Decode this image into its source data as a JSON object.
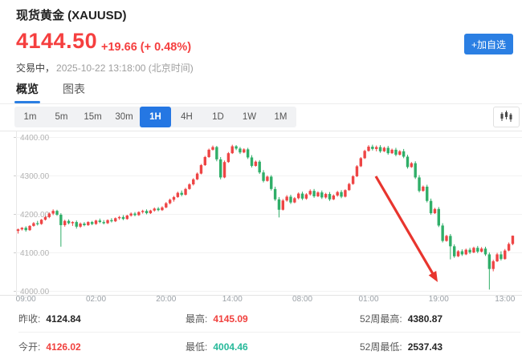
{
  "header": {
    "title": "现货黄金 (XAUUSD)",
    "price": "4144.50",
    "change": "+19.66 (+ 0.48%)",
    "trading_status": "交易中，",
    "timestamp": "2025-10-22 13:18:00 (北京时间)",
    "add_watchlist_label": "+加自选"
  },
  "tabs": [
    {
      "label": "概览",
      "active": true
    },
    {
      "label": "图表",
      "active": false
    }
  ],
  "toolbar": {
    "intervals": [
      "1m",
      "5m",
      "15m",
      "30m",
      "1H",
      "4H",
      "1D",
      "1W",
      "1M"
    ],
    "active": "1H"
  },
  "colors": {
    "accent_blue": "#2b7fe3",
    "up_red": "#ee4545",
    "down_green": "#2fae68",
    "price_red": "#f53f3f",
    "value_green": "#26b99a",
    "arrow_red": "#e8352e"
  },
  "stats": [
    {
      "label": "昨收:",
      "value": "4124.84",
      "color": "dark"
    },
    {
      "label": "最高:",
      "value": "4145.09",
      "color": "red"
    },
    {
      "label": "52周最高:",
      "value": "4380.87",
      "color": "dark"
    },
    {
      "label": "今开:",
      "value": "4126.02",
      "color": "red"
    },
    {
      "label": "最低:",
      "value": "4004.46",
      "color": "green"
    },
    {
      "label": "52周最低:",
      "value": "2537.43",
      "color": "dark"
    }
  ],
  "chart_data": {
    "type": "candlestick",
    "interval": "1H",
    "title": "现货黄金 XAUUSD 1H",
    "ylim": [
      4000,
      4400
    ],
    "ylabels": [
      "4400.00",
      "4300.00",
      "4200.00",
      "4100.00",
      "4000.00"
    ],
    "grid_levels": [
      4400,
      4300,
      4200,
      4100,
      4000
    ],
    "xlabels": [
      "09:00",
      "02:00",
      "20:00",
      "14:00",
      "08:00",
      "01:00",
      "19:00",
      "13:00"
    ],
    "tick_indices": [
      2,
      20,
      38,
      55,
      73,
      90,
      108,
      125
    ],
    "up_color": "#ee4545",
    "down_color": "#2fae68",
    "annotation_arrow": {
      "x1": 468,
      "y1": 57,
      "x2": 545,
      "y2": 189
    },
    "candles": [
      [
        4157,
        4163,
        4150,
        4161
      ],
      [
        4161,
        4167,
        4158,
        4165
      ],
      [
        4165,
        4169,
        4155,
        4159
      ],
      [
        4159,
        4172,
        4157,
        4170
      ],
      [
        4170,
        4180,
        4168,
        4177
      ],
      [
        4177,
        4183,
        4171,
        4175
      ],
      [
        4175,
        4188,
        4173,
        4186
      ],
      [
        4186,
        4196,
        4184,
        4193
      ],
      [
        4193,
        4205,
        4190,
        4202
      ],
      [
        4202,
        4213,
        4198,
        4209
      ],
      [
        4209,
        4212,
        4196,
        4199
      ],
      [
        4199,
        4203,
        4116,
        4172
      ],
      [
        4172,
        4186,
        4168,
        4183
      ],
      [
        4183,
        4187,
        4174,
        4177
      ],
      [
        4177,
        4182,
        4170,
        4180
      ],
      [
        4180,
        4184,
        4163,
        4168
      ],
      [
        4168,
        4179,
        4165,
        4176
      ],
      [
        4176,
        4180,
        4169,
        4172
      ],
      [
        4172,
        4182,
        4170,
        4180
      ],
      [
        4180,
        4183,
        4172,
        4175
      ],
      [
        4175,
        4186,
        4173,
        4184
      ],
      [
        4184,
        4189,
        4177,
        4180
      ],
      [
        4180,
        4185,
        4174,
        4177
      ],
      [
        4177,
        4187,
        4175,
        4185
      ],
      [
        4185,
        4190,
        4179,
        4182
      ],
      [
        4182,
        4192,
        4180,
        4190
      ],
      [
        4190,
        4196,
        4186,
        4193
      ],
      [
        4193,
        4198,
        4185,
        4188
      ],
      [
        4188,
        4199,
        4186,
        4197
      ],
      [
        4197,
        4205,
        4194,
        4202
      ],
      [
        4202,
        4206,
        4195,
        4198
      ],
      [
        4198,
        4208,
        4196,
        4206
      ],
      [
        4206,
        4212,
        4202,
        4209
      ],
      [
        4209,
        4213,
        4200,
        4203
      ],
      [
        4203,
        4212,
        4201,
        4210
      ],
      [
        4210,
        4218,
        4207,
        4215
      ],
      [
        4215,
        4219,
        4208,
        4211
      ],
      [
        4211,
        4221,
        4209,
        4218
      ],
      [
        4218,
        4232,
        4216,
        4229
      ],
      [
        4229,
        4241,
        4226,
        4238
      ],
      [
        4238,
        4248,
        4233,
        4245
      ],
      [
        4245,
        4259,
        4243,
        4256
      ],
      [
        4256,
        4262,
        4247,
        4251
      ],
      [
        4251,
        4269,
        4249,
        4266
      ],
      [
        4266,
        4281,
        4264,
        4278
      ],
      [
        4278,
        4294,
        4275,
        4291
      ],
      [
        4291,
        4309,
        4289,
        4306
      ],
      [
        4306,
        4331,
        4304,
        4328
      ],
      [
        4328,
        4352,
        4326,
        4349
      ],
      [
        4349,
        4371,
        4347,
        4368
      ],
      [
        4368,
        4379,
        4366,
        4375
      ],
      [
        4375,
        4378,
        4338,
        4343
      ],
      [
        4343,
        4349,
        4291,
        4296
      ],
      [
        4296,
        4340,
        4294,
        4336
      ],
      [
        4336,
        4362,
        4334,
        4359
      ],
      [
        4359,
        4381,
        4357,
        4377
      ],
      [
        4377,
        4380,
        4367,
        4371
      ],
      [
        4371,
        4375,
        4357,
        4361
      ],
      [
        4361,
        4372,
        4359,
        4369
      ],
      [
        4369,
        4373,
        4344,
        4348
      ],
      [
        4348,
        4354,
        4322,
        4326
      ],
      [
        4326,
        4340,
        4324,
        4337
      ],
      [
        4337,
        4341,
        4305,
        4309
      ],
      [
        4309,
        4315,
        4283,
        4287
      ],
      [
        4287,
        4301,
        4285,
        4298
      ],
      [
        4298,
        4302,
        4262,
        4266
      ],
      [
        4266,
        4272,
        4235,
        4239
      ],
      [
        4239,
        4245,
        4192,
        4212
      ],
      [
        4212,
        4240,
        4210,
        4236
      ],
      [
        4236,
        4250,
        4233,
        4246
      ],
      [
        4246,
        4251,
        4227,
        4231
      ],
      [
        4231,
        4245,
        4229,
        4242
      ],
      [
        4242,
        4257,
        4239,
        4254
      ],
      [
        4254,
        4259,
        4237,
        4241
      ],
      [
        4241,
        4255,
        4238,
        4252
      ],
      [
        4252,
        4265,
        4249,
        4261
      ],
      [
        4261,
        4266,
        4243,
        4247
      ],
      [
        4247,
        4260,
        4245,
        4257
      ],
      [
        4257,
        4262,
        4240,
        4244
      ],
      [
        4244,
        4256,
        4241,
        4253
      ],
      [
        4253,
        4258,
        4235,
        4239
      ],
      [
        4239,
        4252,
        4237,
        4249
      ],
      [
        4249,
        4261,
        4246,
        4258
      ],
      [
        4258,
        4263,
        4242,
        4246
      ],
      [
        4246,
        4265,
        4244,
        4263
      ],
      [
        4263,
        4282,
        4261,
        4279
      ],
      [
        4279,
        4302,
        4277,
        4299
      ],
      [
        4299,
        4328,
        4297,
        4325
      ],
      [
        4325,
        4349,
        4323,
        4346
      ],
      [
        4346,
        4368,
        4344,
        4365
      ],
      [
        4365,
        4380,
        4363,
        4376
      ],
      [
        4376,
        4381,
        4366,
        4370
      ],
      [
        4370,
        4379,
        4364,
        4375
      ],
      [
        4375,
        4380,
        4360,
        4364
      ],
      [
        4364,
        4376,
        4362,
        4373
      ],
      [
        4373,
        4378,
        4355,
        4359
      ],
      [
        4359,
        4371,
        4357,
        4368
      ],
      [
        4368,
        4373,
        4351,
        4355
      ],
      [
        4355,
        4367,
        4353,
        4364
      ],
      [
        4364,
        4370,
        4346,
        4350
      ],
      [
        4350,
        4355,
        4319,
        4323
      ],
      [
        4323,
        4336,
        4321,
        4333
      ],
      [
        4333,
        4338,
        4292,
        4296
      ],
      [
        4296,
        4302,
        4257,
        4261
      ],
      [
        4261,
        4275,
        4259,
        4272
      ],
      [
        4272,
        4277,
        4231,
        4235
      ],
      [
        4235,
        4241,
        4199,
        4203
      ],
      [
        4203,
        4217,
        4201,
        4214
      ],
      [
        4214,
        4219,
        4167,
        4171
      ],
      [
        4171,
        4177,
        4127,
        4131
      ],
      [
        4131,
        4147,
        4129,
        4144
      ],
      [
        4144,
        4149,
        4083,
        4117
      ],
      [
        4117,
        4122,
        4087,
        4091
      ],
      [
        4091,
        4107,
        4089,
        4104
      ],
      [
        4104,
        4109,
        4092,
        4096
      ],
      [
        4096,
        4111,
        4094,
        4108
      ],
      [
        4108,
        4113,
        4097,
        4101
      ],
      [
        4101,
        4116,
        4099,
        4113
      ],
      [
        4113,
        4118,
        4099,
        4103
      ],
      [
        4103,
        4115,
        4101,
        4111
      ],
      [
        4111,
        4116,
        4092,
        4096
      ],
      [
        4096,
        4101,
        4004.5,
        4058
      ],
      [
        4058,
        4082,
        4052,
        4078
      ],
      [
        4078,
        4100,
        4076,
        4096
      ],
      [
        4096,
        4104,
        4080,
        4084
      ],
      [
        4084,
        4110,
        4082,
        4106
      ],
      [
        4106,
        4127,
        4104,
        4123
      ],
      [
        4123,
        4145,
        4120,
        4144.5
      ]
    ]
  }
}
